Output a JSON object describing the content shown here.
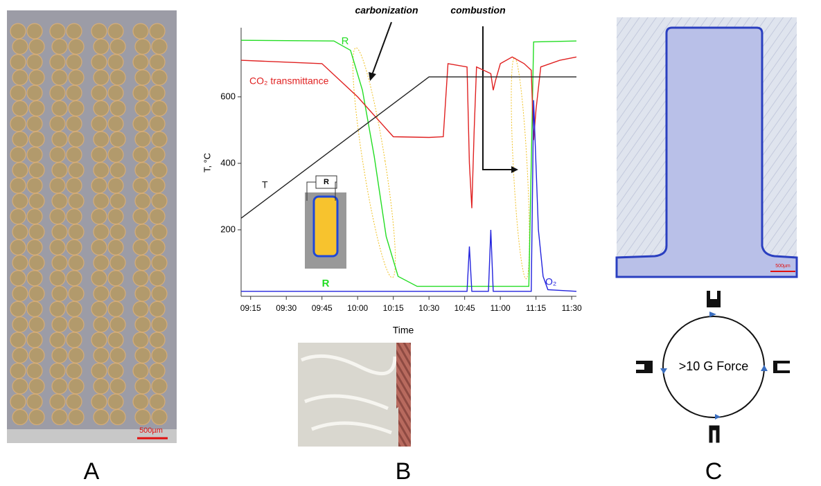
{
  "panel_labels": [
    "A",
    "B",
    "C"
  ],
  "scale_bars": [
    "500µm",
    "500µm"
  ],
  "diagram": {
    "label": ">10 G Force"
  },
  "chart_data": {
    "type": "line",
    "y_label": "T, °C",
    "x_label": "Time",
    "annotations": [
      "carbonization",
      "combustion"
    ],
    "inset_label": "R",
    "xlim": [
      551,
      692
    ],
    "ylim": [
      0,
      808
    ],
    "xticks": [
      {
        "value": 555,
        "label": "09:15"
      },
      {
        "value": 570,
        "label": "09:30"
      },
      {
        "value": 585,
        "label": "09:45"
      },
      {
        "value": 600,
        "label": "10:00"
      },
      {
        "value": 615,
        "label": "10:15"
      },
      {
        "value": 630,
        "label": "10:30"
      },
      {
        "value": 645,
        "label": "10:45"
      },
      {
        "value": 660,
        "label": "11:00"
      },
      {
        "value": 675,
        "label": "11:15"
      },
      {
        "value": 690,
        "label": "11:30"
      }
    ],
    "yticks": [
      200,
      400,
      600
    ],
    "series": [
      {
        "name": "R",
        "color": "#22dd22",
        "x": [
          551,
          590,
          597,
          602,
          607,
          612,
          617,
          625,
          672,
          673,
          674,
          692
        ],
        "values": [
          770,
          768,
          740,
          620,
          420,
          180,
          60,
          30,
          30,
          400,
          765,
          768
        ]
      },
      {
        "name": "CO₂ transmittance",
        "color": "#e02020",
        "x": [
          551,
          585,
          600,
          610,
          615,
          630,
          636,
          638,
          646,
          647,
          648,
          649,
          650,
          656,
          657,
          658,
          660,
          665,
          670,
          673,
          674,
          675,
          677,
          685,
          692
        ],
        "values": [
          710,
          700,
          600,
          520,
          480,
          478,
          480,
          700,
          690,
          400,
          265,
          500,
          690,
          670,
          620,
          650,
          700,
          720,
          700,
          680,
          470,
          560,
          690,
          710,
          720
        ]
      },
      {
        "name": "T",
        "color": "#222222",
        "x": [
          551,
          630,
          692
        ],
        "values": [
          235,
          660,
          660
        ]
      },
      {
        "name": "O₂",
        "color": "#2222dd",
        "x": [
          551,
          646,
          647,
          648,
          655,
          656,
          657,
          673,
          674,
          676,
          678,
          680,
          692
        ],
        "values": [
          15,
          15,
          150,
          15,
          15,
          200,
          15,
          15,
          590,
          200,
          60,
          20,
          15
        ]
      }
    ]
  }
}
